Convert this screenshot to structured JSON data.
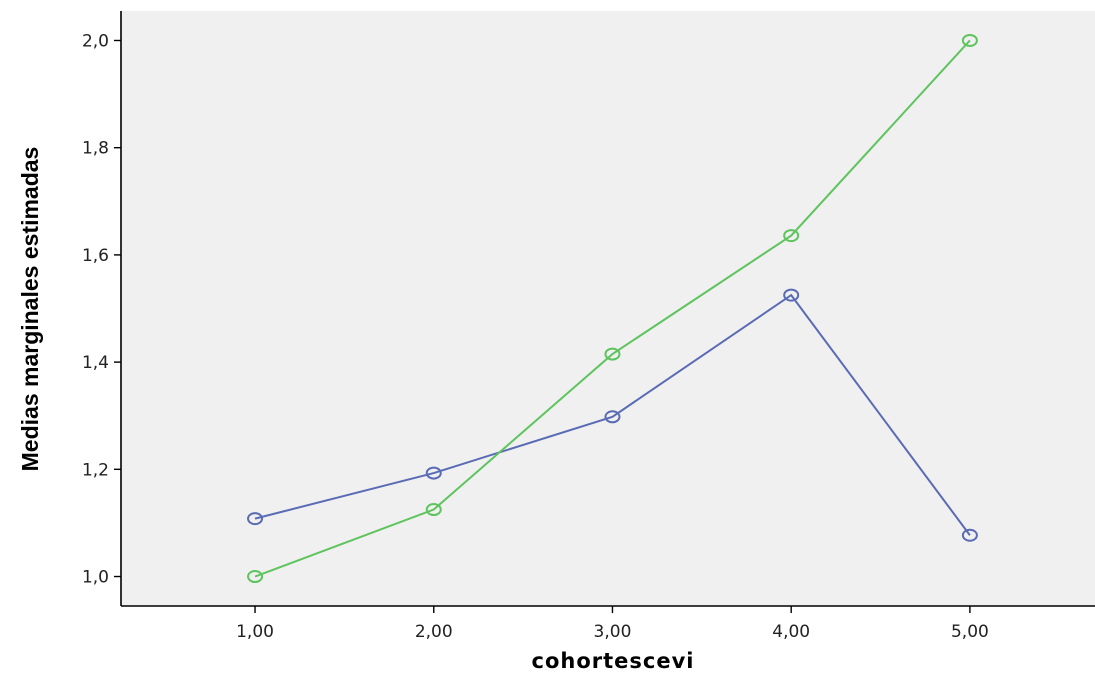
{
  "chart_data": {
    "type": "line",
    "xlabel": "cohortescevi",
    "ylabel": "Medias marginales estimadas",
    "categories": [
      "1,00",
      "2,00",
      "3,00",
      "4,00",
      "5,00"
    ],
    "x": [
      1,
      2,
      3,
      4,
      5
    ],
    "yticks": [
      "1,0",
      "1,2",
      "1,4",
      "1,6",
      "1,8",
      "2,0"
    ],
    "ytick_values": [
      1.0,
      1.2,
      1.4,
      1.6,
      1.8,
      2.0
    ],
    "ylim": [
      0.945,
      2.055
    ],
    "xlim": [
      0.25,
      5.7
    ],
    "grid": false,
    "background": "#f0f0f0",
    "series": [
      {
        "color": "#5a6bb5",
        "values": [
          1.108,
          1.193,
          1.298,
          1.525,
          1.077
        ]
      },
      {
        "color": "#5ec45e",
        "values": [
          1.0,
          1.125,
          1.415,
          1.636,
          2.0
        ]
      }
    ]
  }
}
